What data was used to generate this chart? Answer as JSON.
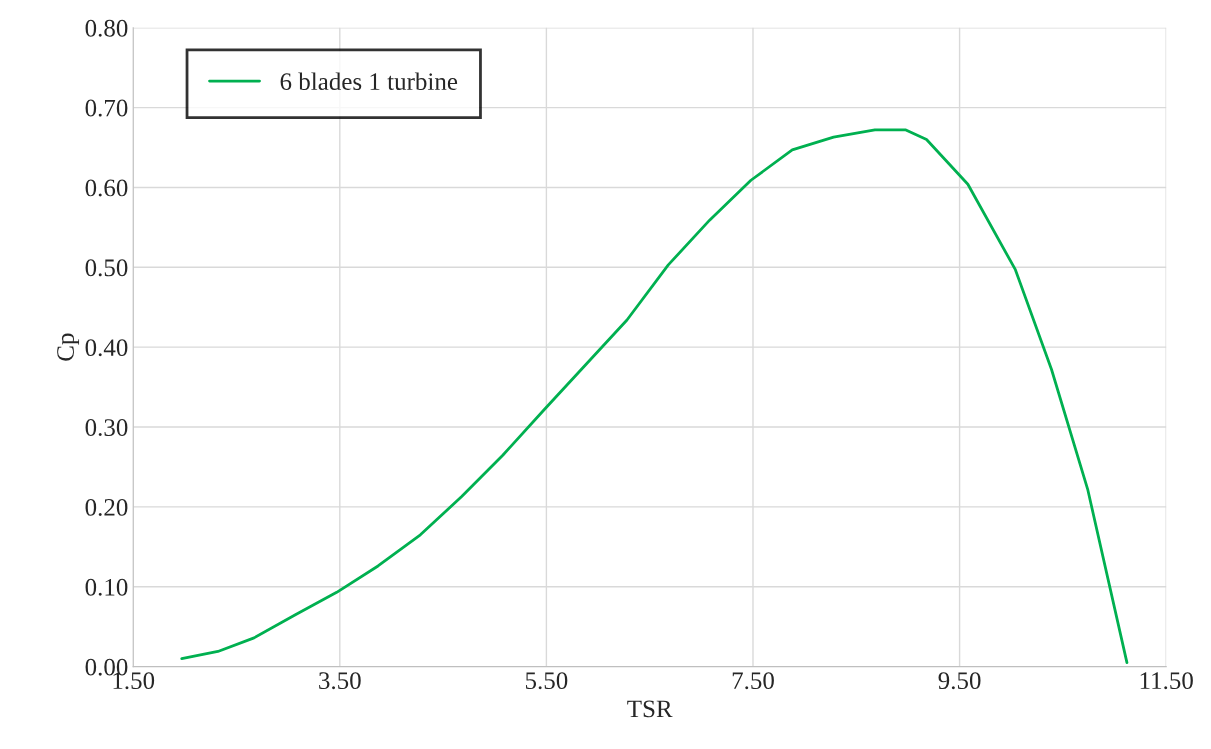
{
  "chart_data": {
    "type": "line",
    "xlabel": "TSR",
    "ylabel": "Cp",
    "xlim": [
      1.5,
      11.5
    ],
    "xticks": [
      {
        "value": 1.5,
        "label": "1.50"
      },
      {
        "value": 3.5,
        "label": "3.50"
      },
      {
        "value": 5.5,
        "label": "5.50"
      },
      {
        "value": 7.5,
        "label": "7.50"
      },
      {
        "value": 9.5,
        "label": "9.50"
      },
      {
        "value": 11.5,
        "label": "11.50"
      }
    ],
    "ylim": [
      0,
      0.8
    ],
    "yticks": [
      {
        "value": 0,
        "label": "0.00"
      },
      {
        "value": 0.1,
        "label": "0.10"
      },
      {
        "value": 0.2,
        "label": "0.20"
      },
      {
        "value": 0.3,
        "label": "0.30"
      },
      {
        "value": 0.4,
        "label": "0.40"
      },
      {
        "value": 0.5,
        "label": "0.50"
      },
      {
        "value": 0.6,
        "label": "0.60"
      },
      {
        "value": 0.7,
        "label": "0.70"
      },
      {
        "value": 0.8,
        "label": "0.80"
      }
    ],
    "grid": true,
    "legend": "top left",
    "marker": "none",
    "line_style": "solid",
    "series": [
      {
        "name": "6 blades 1 turbine",
        "color": "#00b050",
        "x": [
          1.97,
          2.32,
          2.67,
          3.07,
          3.47,
          3.87,
          4.28,
          4.68,
          5.08,
          5.48,
          5.88,
          6.28,
          6.68,
          7.08,
          7.48,
          7.88,
          8.28,
          8.68,
          8.98,
          9.18,
          9.58,
          10.04,
          10.39,
          10.74,
          11.12
        ],
        "values": [
          0.01,
          0.019,
          0.036,
          0.065,
          0.093,
          0.126,
          0.165,
          0.213,
          0.265,
          0.322,
          0.378,
          0.434,
          0.503,
          0.559,
          0.609,
          0.647,
          0.663,
          0.672,
          0.672,
          0.66,
          0.604,
          0.497,
          0.372,
          0.222,
          0.005
        ]
      }
    ]
  }
}
